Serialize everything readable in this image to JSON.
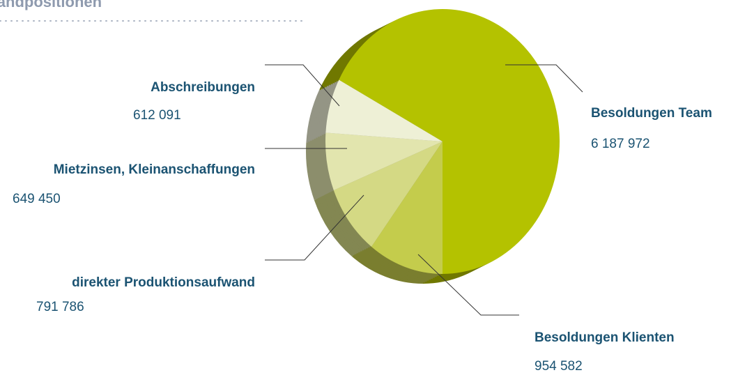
{
  "chart_data": {
    "type": "pie",
    "title": "Aufwandpositionen",
    "categories": [
      "Besoldungen Team",
      "Besoldungen Klienten",
      "direkter Produktionsaufwand",
      "Mietzinsen, Kleinanschaffungen",
      "Abschreibungen"
    ],
    "values": [
      6187972,
      954582,
      791786,
      649450,
      612091
    ],
    "value_labels": [
      "6 187 972",
      "954 582",
      "791 786",
      "649 450",
      "612 091"
    ],
    "colors": [
      "#b4c200",
      "#c4cc4c",
      "#d4d984",
      "#e2e5ae",
      "#eef0d6"
    ]
  }
}
